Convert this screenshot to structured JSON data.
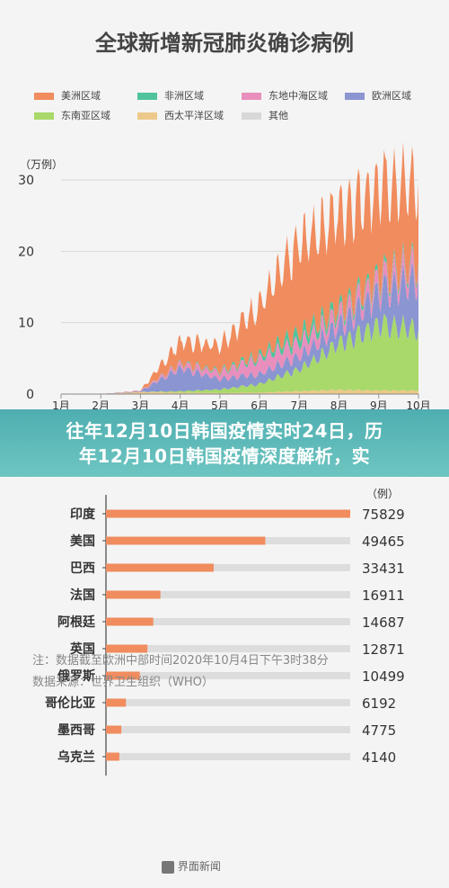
{
  "overlay": {
    "line1": "往年12月10日韩国疫情实时24日，历",
    "line2": "年12月10日韩国疫情深度解析，实"
  },
  "top_chart": {
    "title": "全球新增新冠肺炎确诊病例",
    "unit": "（万例）",
    "legend": [
      {
        "label": "美洲区域",
        "color": "#f08c5e"
      },
      {
        "label": "非洲区域",
        "color": "#4fc49b"
      },
      {
        "label": "东地中海区域",
        "color": "#e98fbd"
      },
      {
        "label": "欧洲区域",
        "color": "#8a95d1"
      },
      {
        "label": "东南亚区域",
        "color": "#a8d96a"
      },
      {
        "label": "西太平洋区域",
        "color": "#ecc98a"
      },
      {
        "label": "其他",
        "color": "#d8d8d8"
      }
    ]
  },
  "bottom_chart": {
    "unit": "（例）",
    "footnote1": "注：数据截至欧洲中部时间2020年10月4日下午3时38分",
    "footnote2": "数据来源：世界卫生组织（WHO）",
    "brand": "界面新闻",
    "bar_color": "#f08c5e",
    "track_color": "#dddddd"
  },
  "chart_data": [
    {
      "type": "area",
      "title": "全球新增新冠肺炎确诊病例",
      "ylabel": "（万例）",
      "ylim": [
        0,
        30
      ],
      "yticks": [
        0,
        10,
        20,
        30
      ],
      "x_ticks": [
        "1月",
        "2月",
        "3月",
        "4月",
        "5月",
        "6月",
        "7月",
        "8月",
        "9月",
        "10月"
      ],
      "x_months": [
        1,
        2,
        3,
        4,
        5,
        6,
        7,
        8,
        9,
        10
      ],
      "series": [
        {
          "name": "西太平洋区域",
          "values": [
            0,
            0,
            0.3,
            0.2,
            0.15,
            0.2,
            0.4,
            0.6,
            0.5,
            0.5
          ]
        },
        {
          "name": "东南亚区域",
          "values": [
            0,
            0,
            0,
            0.2,
            0.5,
            1.2,
            3.0,
            6.5,
            9.2,
            8.5
          ]
        },
        {
          "name": "欧洲区域",
          "values": [
            0,
            0,
            0.1,
            3.2,
            1.5,
            1.4,
            1.8,
            2.5,
            4.5,
            7.0
          ]
        },
        {
          "name": "东地中海区域",
          "values": [
            0,
            0,
            0.05,
            0.6,
            1.0,
            2.2,
            1.9,
            1.6,
            1.7,
            2.0
          ]
        },
        {
          "name": "非洲区域",
          "values": [
            0,
            0,
            0,
            0.1,
            0.2,
            0.5,
            1.3,
            0.8,
            0.6,
            0.5
          ]
        },
        {
          "name": "美洲区域",
          "values": [
            0,
            0,
            0.05,
            3.0,
            3.6,
            7.0,
            12.5,
            13.5,
            12.5,
            11.0
          ]
        },
        {
          "name": "其他",
          "values": [
            0,
            0,
            0,
            0,
            0,
            0,
            0,
            0,
            0,
            0
          ]
        }
      ]
    },
    {
      "type": "bar",
      "orientation": "horizontal",
      "ylabel": "（例）",
      "categories": [
        "印度",
        "美国",
        "巴西",
        "法国",
        "阿根廷",
        "英国",
        "俄罗斯",
        "哥伦比亚",
        "墨西哥",
        "乌克兰"
      ],
      "values": [
        75829,
        49465,
        33431,
        16911,
        14687,
        12871,
        10499,
        6192,
        4775,
        4140
      ],
      "xlim": [
        0,
        75829
      ]
    }
  ]
}
